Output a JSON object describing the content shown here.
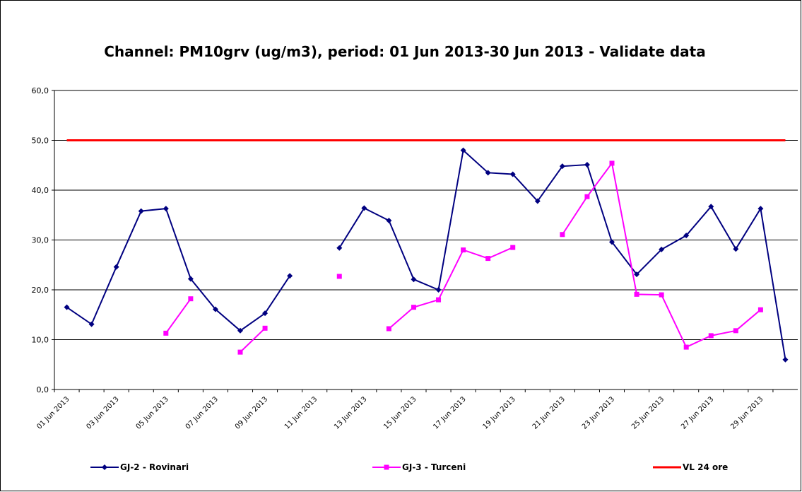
{
  "chart_data": {
    "type": "line",
    "title": "Channel: PM10grv (ug/m3), period: 01 Jun 2013-30 Jun 2013 - Validate data",
    "categories": [
      "01 Jun 2013",
      null,
      "03 Jun 2013",
      null,
      "05 Jun 2013",
      null,
      "07 Jun 2013",
      null,
      "09 Jun 2013",
      null,
      "11 Jun 2013",
      null,
      "13 Jun 2013",
      null,
      "15 Jun 2013",
      null,
      "17 Jun 2013",
      null,
      "19 Jun 2013",
      null,
      "21 Jun 2013",
      null,
      "23 Jun 2013",
      null,
      "25 Jun 2013",
      null,
      "27 Jun 2013",
      null,
      "29 Jun 2013",
      null
    ],
    "series": [
      {
        "name": "GJ-2 - Rovinari",
        "color": "#000080",
        "marker": "diamond",
        "values": [
          16.5,
          13.1,
          24.6,
          35.8,
          36.3,
          22.2,
          16.1,
          11.8,
          15.3,
          22.8,
          null,
          28.4,
          36.4,
          33.9,
          22.1,
          20.0,
          48.0,
          43.5,
          43.2,
          37.8,
          44.8,
          45.1,
          29.6,
          23.1,
          28.1,
          30.9,
          36.7,
          28.2,
          36.3,
          6.0
        ]
      },
      {
        "name": "GJ-3 - Turceni",
        "color": "#ff00ff",
        "marker": "square",
        "values": [
          null,
          null,
          null,
          null,
          11.3,
          18.2,
          null,
          7.5,
          12.3,
          null,
          null,
          22.7,
          null,
          12.2,
          16.5,
          18.0,
          28.0,
          26.3,
          28.5,
          null,
          31.1,
          38.7,
          45.4,
          19.1,
          19.0,
          8.5,
          10.8,
          11.8,
          16.0,
          null
        ]
      },
      {
        "name": "VL 24 ore",
        "color": "#ff0000",
        "marker": "none",
        "values": [
          50,
          50,
          50,
          50,
          50,
          50,
          50,
          50,
          50,
          50,
          50,
          50,
          50,
          50,
          50,
          50,
          50,
          50,
          50,
          50,
          50,
          50,
          50,
          50,
          50,
          50,
          50,
          50,
          50,
          50
        ]
      }
    ],
    "ylim": [
      0,
      60
    ],
    "yticks": [
      {
        "value": 0,
        "label": "0,0"
      },
      {
        "value": 10,
        "label": "10,0"
      },
      {
        "value": 20,
        "label": "20,0"
      },
      {
        "value": 30,
        "label": "30,0"
      },
      {
        "value": 40,
        "label": "40,0"
      },
      {
        "value": 50,
        "label": "50,0"
      },
      {
        "value": 60,
        "label": "60,0"
      }
    ],
    "grid": true,
    "legend": "bottom"
  }
}
